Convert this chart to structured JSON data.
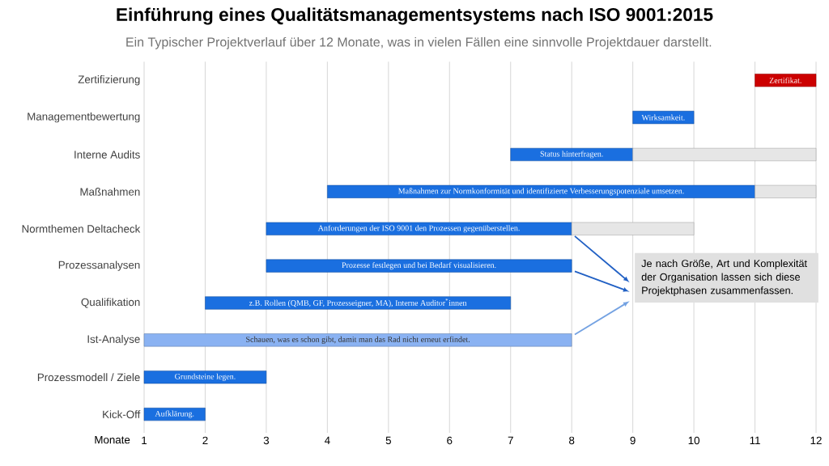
{
  "chart_data": {
    "type": "bar",
    "orientation": "horizontal",
    "title": "Einführung eines Qualitätsmanagementsystems nach ISO 9001:2015",
    "subtitle": "Ein Typischer Projektverlauf über 12 Monate, was in vielen Fällen eine sinnvolle Projektdauer darstellt.",
    "xlabel": "Monate",
    "categories": [
      "Zertifizierung",
      "Managementbewertung",
      "Interne Audits",
      "Maßnahmen",
      "Normthemen Deltacheck",
      "Prozessanalysen",
      "Qualifikation",
      "Ist-Analyse",
      "Prozessmodell / Ziele",
      "Kick-Off"
    ],
    "series": [
      {
        "base": [
          11,
          9,
          7,
          4,
          3,
          3,
          2,
          1,
          1,
          1
        ],
        "values": [
          1,
          1,
          2,
          7,
          5,
          5,
          5,
          7,
          2,
          1
        ],
        "colors": [
          "#cc0000",
          "#1a6fe0",
          "#1a6fe0",
          "#1a6fe0",
          "#1a6fe0",
          "#1a6fe0",
          "#1a6fe0",
          "#8ab2f2",
          "#1a6fe0",
          "#1a6fe0"
        ],
        "value_labels": [
          "Zertifikat.",
          "Wirksamkeit.",
          "Status hinterfragen.",
          "Maßnahmen zur Normkonformität und identifizierte Verbesserungspotenziale umsetzen.",
          "Anforderungen der ISO 9001 den Prozessen gegenüberstellen.",
          "Prozesse festlegen und bei Bedarf visualisieren.",
          "z.B. Rollen (QMB, GF, Prozesseigner, MA), Interne Auditor$^{*}$innen",
          "Schauen, was es schon gibt, damit man das Rad nicht erneut erfindet.",
          "Grundsteine legen.",
          "Aufklärung."
        ]
      },
      {
        "base": [
          null,
          null,
          9,
          11,
          8,
          null,
          null,
          null,
          null,
          null
        ],
        "values": [
          null,
          null,
          3,
          1,
          2,
          null,
          null,
          null,
          null,
          null
        ],
        "color": "#e6e6e6"
      }
    ],
    "xlim": [
      1,
      12
    ],
    "xticks": [
      1,
      2,
      3,
      4,
      5,
      6,
      7,
      8,
      9,
      10,
      11,
      12
    ],
    "grid": "x",
    "annotations": [
      "Je nach Größe, Art und Komplexität der Organisation lassen sich diese Projektphasen zusammenfassen."
    ]
  }
}
